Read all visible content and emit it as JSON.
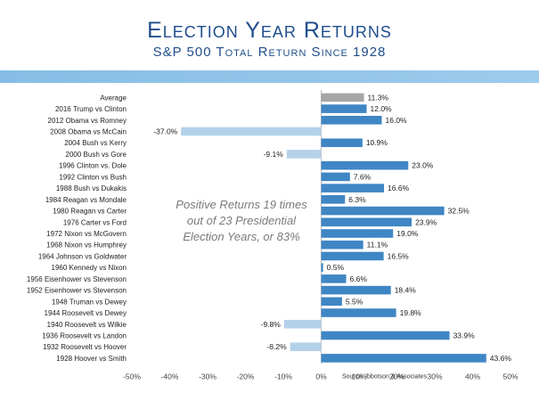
{
  "title": "Election Year Returns",
  "subtitle": "S&P 500 Total Return Since 1928",
  "annotation": "Positive Returns 19 times out of 23 Presidential Election Years, or 83%",
  "source": "Source: Ibbotson & Associates",
  "colors": {
    "positive": "#3f86c4",
    "negative": "#b4d1ea",
    "average": "#a6a6a6",
    "title": "#1f4e8c",
    "band": "#8fc3e9"
  },
  "chart_data": {
    "type": "bar",
    "orientation": "horizontal",
    "categories": [
      "Average",
      "2016 Trump vs Clinton",
      "2012 Obama vs Romney",
      "2008 Obama vs McCain",
      "2004 Bush vs Kerry",
      "2000 Bush vs Gore",
      "1996 Clinton vs. Dole",
      "1992 Clinton vs Bush",
      "1988 Bush vs Dukakis",
      "1984 Reagan vs Mondale",
      "1980 Reagan vs Carter",
      "1976 Carter vs Ford",
      "1972 Nixon vs McGovern",
      "1968 Nixon vs Humphrey",
      "1964 Johnson vs Goldwater",
      "1960 Kennedy vs Nixon",
      "1956 Eisenhower vs Stevenson",
      "1952 Eisenhower vs Stevenson",
      "1948 Truman vs Dewey",
      "1944 Roosevelt vs Dewey",
      "1940 Roosevelt vs Wilkie",
      "1936 Roosevelt vs Landon",
      "1932 Roosevelt vs Hoover",
      "1928 Hoover vs Smith"
    ],
    "values": [
      11.3,
      12.0,
      16.0,
      -37.0,
      10.9,
      -9.1,
      23.0,
      7.6,
      16.6,
      6.3,
      32.5,
      23.9,
      19.0,
      11.1,
      16.5,
      0.5,
      6.6,
      18.4,
      5.5,
      19.8,
      -9.8,
      33.9,
      -8.2,
      43.6
    ],
    "value_labels": [
      "11.3%",
      "12.0%",
      "16.0%",
      "-37.0%",
      "10.9%",
      "-9.1%",
      "23.0%",
      "7.6%",
      "16.6%",
      "6.3%",
      "32.5%",
      "23.9%",
      "19.0%",
      "11.1%",
      "16.5%",
      "0.5%",
      "6.6%",
      "18.4%",
      "5.5%",
      "19.8%",
      "-9.8%",
      "33.9%",
      "-8.2%",
      "43.6%"
    ],
    "highlight_category": "Average",
    "xlim": [
      -50,
      50
    ],
    "xticks": [
      -50,
      -40,
      -30,
      -20,
      -10,
      0,
      10,
      20,
      30,
      40,
      50
    ],
    "xtick_labels": [
      "-50%",
      "-40%",
      "-30%",
      "-20%",
      "-10%",
      "0%",
      "10%",
      "20%",
      "30%",
      "40%",
      "50%"
    ],
    "grid": false,
    "legend": "none"
  }
}
